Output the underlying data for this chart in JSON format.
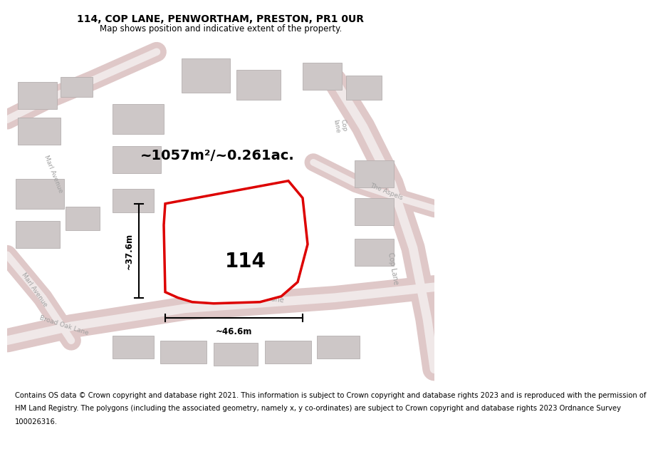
{
  "title": "114, COP LANE, PENWORTHAM, PRESTON, PR1 0UR",
  "subtitle": "Map shows position and indicative extent of the property.",
  "footer_lines": [
    "Contains OS data © Crown copyright and database right 2021. This information is subject to Crown copyright and database rights 2023 and is reproduced with the permission of",
    "HM Land Registry. The polygons (including the associated geometry, namely x, y co-ordinates) are subject to Crown copyright and database rights 2023 Ordnance Survey",
    "100026316."
  ],
  "area_text": "~1057m²/~0.261ac.",
  "number_text": "114",
  "width_text": "~46.6m",
  "height_text": "~37.6m",
  "map_bg": "#eae5e5",
  "road_fill": "#dfc8c8",
  "road_center": "#f0e8e8",
  "building_fill": "#cdc7c7",
  "building_edge": "#b5afaf",
  "prop_fill": "#ffffff",
  "prop_edge": "#dd0000",
  "title_fontsize": 10,
  "subtitle_fontsize": 8.5,
  "footer_fontsize": 7.2,
  "area_fontsize": 14,
  "number_fontsize": 20,
  "dim_fontsize": 8.5
}
